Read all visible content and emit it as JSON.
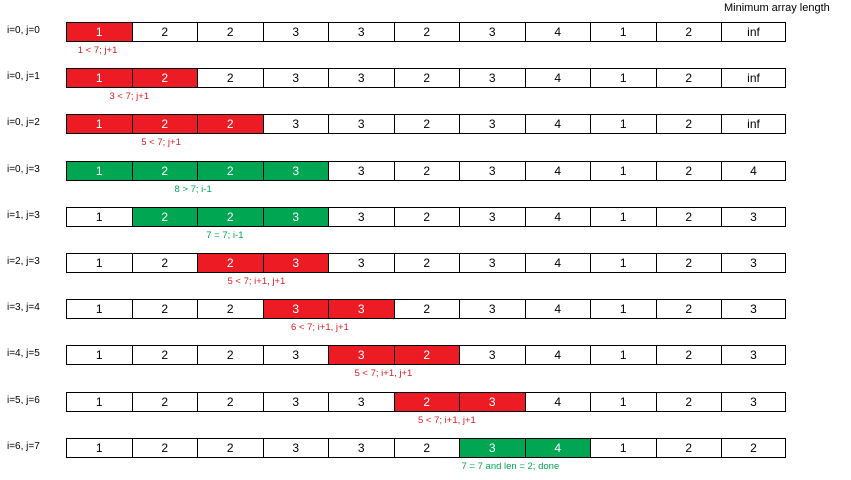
{
  "header": "Minimum array length",
  "colors": {
    "red": "#ed1c24",
    "green": "#00a651"
  },
  "array": [
    1,
    2,
    2,
    3,
    3,
    2,
    3,
    4,
    1,
    2
  ],
  "rows": [
    {
      "label": "i=0, j=0",
      "highlight_start": 0,
      "highlight_end": 0,
      "color": "red",
      "note": "1 < 7; j+1",
      "result": "inf"
    },
    {
      "label": "i=0, j=1",
      "highlight_start": 0,
      "highlight_end": 1,
      "color": "red",
      "note": "3 < 7; j+1",
      "result": "inf"
    },
    {
      "label": "i=0, j=2",
      "highlight_start": 0,
      "highlight_end": 2,
      "color": "red",
      "note": "5 < 7; j+1",
      "result": "inf"
    },
    {
      "label": "i=0, j=3",
      "highlight_start": 0,
      "highlight_end": 3,
      "color": "green",
      "note": "8 > 7; i-1",
      "result": "4"
    },
    {
      "label": "i=1, j=3",
      "highlight_start": 1,
      "highlight_end": 3,
      "color": "green",
      "note": "7 = 7; i-1",
      "result": "3"
    },
    {
      "label": "i=2, j=3",
      "highlight_start": 2,
      "highlight_end": 3,
      "color": "red",
      "note": "5 < 7; i+1, j+1",
      "result": "3"
    },
    {
      "label": "i=3, j=4",
      "highlight_start": 3,
      "highlight_end": 4,
      "color": "red",
      "note": "6 < 7; i+1, j+1",
      "result": "3"
    },
    {
      "label": "i=4, j=5",
      "highlight_start": 4,
      "highlight_end": 5,
      "color": "red",
      "note": "5 < 7; i+1, j+1",
      "result": "3"
    },
    {
      "label": "i=5, j=6",
      "highlight_start": 5,
      "highlight_end": 6,
      "color": "red",
      "note": "5 < 7; i+1, j+1",
      "result": "3"
    },
    {
      "label": "i=6, j=7",
      "highlight_start": 6,
      "highlight_end": 7,
      "color": "green",
      "note": "7 = 7 and len = 2; done",
      "result": "2"
    }
  ]
}
